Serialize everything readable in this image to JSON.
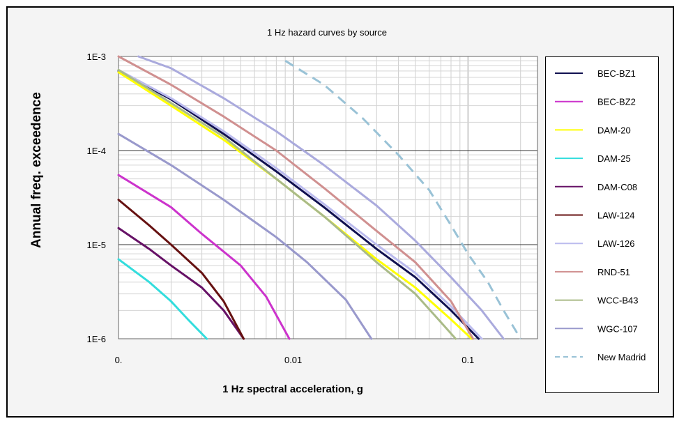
{
  "chart_data": {
    "type": "line",
    "title": "1 Hz hazard curves by source",
    "xlabel": "1 Hz spectral acceleration, g",
    "ylabel": "Annual freq. exceedence",
    "x_scale": "log",
    "y_scale": "log",
    "xlim": [
      0.001,
      0.25
    ],
    "ylim": [
      1e-06,
      0.001
    ],
    "x_ticks": [
      {
        "value": 0.001,
        "label": "0."
      },
      {
        "value": 0.01,
        "label": "0.01"
      },
      {
        "value": 0.1,
        "label": "0.1"
      }
    ],
    "y_ticks": [
      {
        "value": 0.001,
        "label": "1E-3"
      },
      {
        "value": 0.0001,
        "label": "1E-4"
      },
      {
        "value": 1e-05,
        "label": "1E-5"
      },
      {
        "value": 1e-06,
        "label": "1E-6"
      }
    ],
    "grid": true,
    "legend_position": "right",
    "series": [
      {
        "name": "BEC-BZ1",
        "color": "#101050",
        "dash": false,
        "points": [
          [
            0.001,
            0.0007
          ],
          [
            0.002,
            0.00035
          ],
          [
            0.004,
            0.00015
          ],
          [
            0.008,
            6e-05
          ],
          [
            0.015,
            2.5e-05
          ],
          [
            0.03,
            9e-06
          ],
          [
            0.05,
            4.5e-06
          ],
          [
            0.08,
            2e-06
          ],
          [
            0.115,
            1e-06
          ]
        ]
      },
      {
        "name": "BEC-BZ2",
        "color": "#cc33cc",
        "dash": false,
        "points": [
          [
            0.001,
            5.5e-05
          ],
          [
            0.002,
            2.5e-05
          ],
          [
            0.003,
            1.3e-05
          ],
          [
            0.005,
            6e-06
          ],
          [
            0.007,
            2.8e-06
          ],
          [
            0.0095,
            1e-06
          ]
        ]
      },
      {
        "name": "DAM-20",
        "color": "#ffff00",
        "dash": false,
        "points": [
          [
            0.001,
            0.00068
          ],
          [
            0.002,
            0.0003
          ],
          [
            0.004,
            0.00013
          ],
          [
            0.008,
            5e-05
          ],
          [
            0.015,
            2e-05
          ],
          [
            0.03,
            7e-06
          ],
          [
            0.05,
            3.5e-06
          ],
          [
            0.08,
            1.6e-06
          ],
          [
            0.105,
            1e-06
          ]
        ]
      },
      {
        "name": "DAM-25",
        "color": "#33dddd",
        "dash": false,
        "points": [
          [
            0.001,
            7e-06
          ],
          [
            0.0015,
            4e-06
          ],
          [
            0.002,
            2.5e-06
          ],
          [
            0.0025,
            1.6e-06
          ],
          [
            0.0032,
            1e-06
          ]
        ]
      },
      {
        "name": "DAM-C08",
        "color": "#661166",
        "dash": false,
        "points": [
          [
            0.001,
            1.5e-05
          ],
          [
            0.0015,
            9e-06
          ],
          [
            0.002,
            6e-06
          ],
          [
            0.003,
            3.5e-06
          ],
          [
            0.004,
            2e-06
          ],
          [
            0.0052,
            1e-06
          ]
        ]
      },
      {
        "name": "LAW-124",
        "color": "#661111",
        "dash": false,
        "points": [
          [
            0.001,
            3e-05
          ],
          [
            0.0015,
            1.6e-05
          ],
          [
            0.002,
            1e-05
          ],
          [
            0.003,
            5e-06
          ],
          [
            0.004,
            2.5e-06
          ],
          [
            0.0052,
            1e-06
          ]
        ]
      },
      {
        "name": "LAW-126",
        "color": "#bbbbee",
        "dash": false,
        "points": [
          [
            0.001,
            0.00072
          ],
          [
            0.002,
            0.00036
          ],
          [
            0.004,
            0.00016
          ],
          [
            0.008,
            6.5e-05
          ],
          [
            0.015,
            2.7e-05
          ],
          [
            0.03,
            1e-05
          ],
          [
            0.05,
            5e-06
          ],
          [
            0.08,
            2.2e-06
          ],
          [
            0.12,
            1e-06
          ]
        ]
      },
      {
        "name": "RND-51",
        "color": "#d09090",
        "dash": false,
        "points": [
          [
            0.001,
            0.001
          ],
          [
            0.002,
            0.0005
          ],
          [
            0.004,
            0.00023
          ],
          [
            0.008,
            0.0001
          ],
          [
            0.015,
            4e-05
          ],
          [
            0.03,
            1.4e-05
          ],
          [
            0.05,
            6.5e-06
          ],
          [
            0.08,
            2.5e-06
          ],
          [
            0.107,
            1e-06
          ]
        ]
      },
      {
        "name": "WCC-B43",
        "color": "#aabb88",
        "dash": false,
        "points": [
          [
            0.001,
            0.00072
          ],
          [
            0.002,
            0.00032
          ],
          [
            0.004,
            0.00014
          ],
          [
            0.008,
            5e-05
          ],
          [
            0.015,
            2e-05
          ],
          [
            0.03,
            6.5e-06
          ],
          [
            0.05,
            3e-06
          ],
          [
            0.07,
            1.5e-06
          ],
          [
            0.085,
            1e-06
          ]
        ]
      },
      {
        "name": "WGC-107",
        "color": "#9999cc",
        "dash": false,
        "points": [
          [
            0.001,
            0.00015
          ],
          [
            0.002,
            7e-05
          ],
          [
            0.004,
            3e-05
          ],
          [
            0.008,
            1.2e-05
          ],
          [
            0.012,
            6.5e-06
          ],
          [
            0.02,
            2.6e-06
          ],
          [
            0.028,
            1e-06
          ]
        ]
      },
      {
        "name": "WGC-107 (upper)",
        "color": "#aaaadd",
        "dash": false,
        "legend": false,
        "points": [
          [
            0.0013,
            0.001
          ],
          [
            0.002,
            0.00075
          ],
          [
            0.004,
            0.00036
          ],
          [
            0.008,
            0.00016
          ],
          [
            0.015,
            7e-05
          ],
          [
            0.03,
            2.6e-05
          ],
          [
            0.05,
            1.1e-05
          ],
          [
            0.08,
            4.5e-06
          ],
          [
            0.12,
            2e-06
          ],
          [
            0.16,
            1e-06
          ]
        ]
      },
      {
        "name": "New Madrid",
        "color": "#99c2d6",
        "dash": true,
        "points": [
          [
            0.009,
            0.0009
          ],
          [
            0.015,
            0.0005
          ],
          [
            0.025,
            0.00022
          ],
          [
            0.04,
            9e-05
          ],
          [
            0.06,
            3.8e-05
          ],
          [
            0.08,
            1.6e-05
          ],
          [
            0.1,
            8e-06
          ],
          [
            0.13,
            4e-06
          ],
          [
            0.16,
            2e-06
          ],
          [
            0.2,
            1e-06
          ]
        ]
      }
    ]
  }
}
